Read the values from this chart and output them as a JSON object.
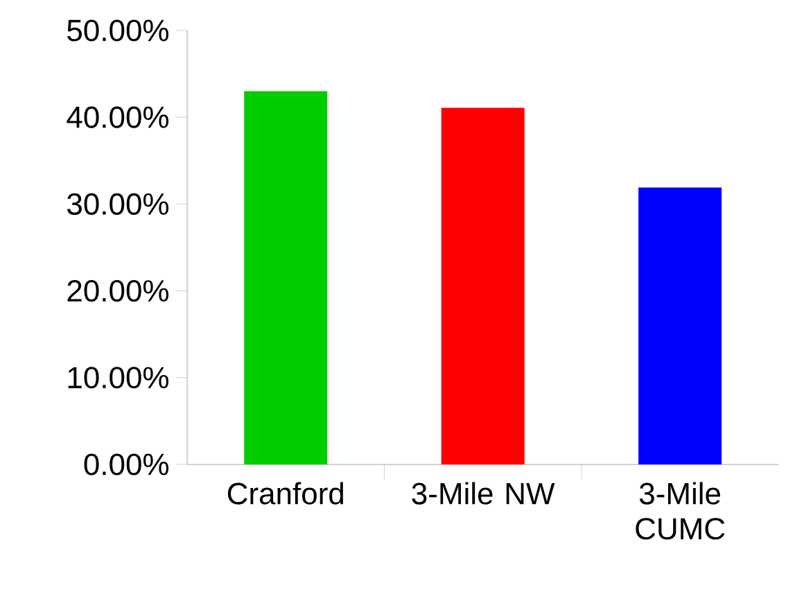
{
  "chart_data": {
    "type": "bar",
    "categories": [
      "Cranford",
      "3-Mile NW",
      "3-Mile CUMC"
    ],
    "values": [
      43.0,
      41.1,
      31.9
    ],
    "colors": [
      "#00cc00",
      "#ff0000",
      "#0000ff"
    ],
    "ylim": [
      0,
      50
    ],
    "yticks": [
      {
        "value": 0,
        "label": "0.00%"
      },
      {
        "value": 10,
        "label": "10.00%"
      },
      {
        "value": 20,
        "label": "20.00%"
      },
      {
        "value": 30,
        "label": "30.00%"
      },
      {
        "value": 40,
        "label": "40.00%"
      },
      {
        "value": 50,
        "label": "50.00%"
      }
    ],
    "grid": false
  }
}
